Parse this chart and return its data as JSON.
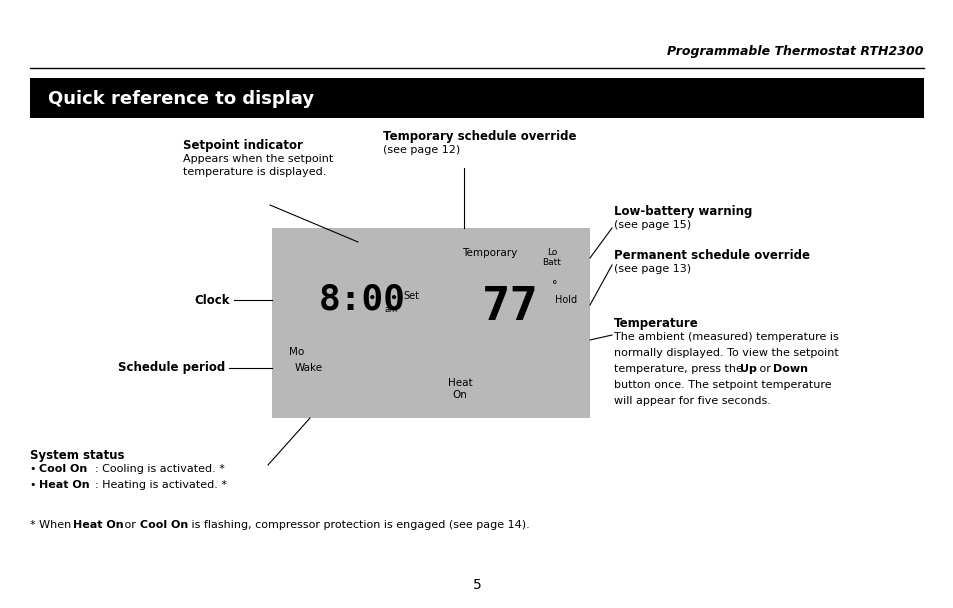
{
  "page_title": "Programmable Thermostat RTH2300",
  "section_title": "Quick reference to display",
  "bg_color": "#ffffff",
  "header_bar_color": "#000000",
  "header_text_color": "#ffffff",
  "display_bg_color": "#b8b8b8",
  "page_number": "5"
}
